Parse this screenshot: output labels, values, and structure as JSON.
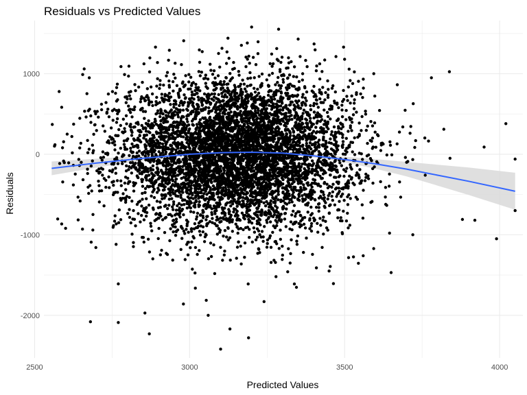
{
  "chart_data": {
    "type": "scatter",
    "title": "Residuals vs Predicted Values",
    "xlabel": "Predicted Values",
    "ylabel": "Residuals",
    "xlim": [
      2530,
      4075
    ],
    "ylim": [
      -2530,
      1660
    ],
    "x_major_ticks": [
      2500,
      3000,
      3500,
      4000
    ],
    "x_minor_ticks": [
      2750,
      3250,
      3750
    ],
    "y_major_ticks": [
      -2000,
      -1000,
      0,
      1000
    ],
    "y_minor_ticks": [
      -1500,
      -500,
      500,
      1500
    ],
    "x_tick_labels": [
      "2500",
      "3000",
      "3500",
      "4000"
    ],
    "y_tick_labels": [
      "-2000",
      "-1000",
      "0",
      "1000"
    ],
    "grid": true,
    "colors": {
      "points": "#000000",
      "smooth_line": "#3366FF",
      "confidence_band": "#d9d9d9",
      "grid": "#ebebeb"
    },
    "n_points_approx": 6000,
    "points_center_x": 3150,
    "points_spread_x_sd": 190,
    "points_spread_y_sd": 470,
    "highlighted_points": [
      [
        2557,
        370
      ],
      [
        2590,
        80
      ],
      [
        2600,
        -920
      ],
      [
        2605,
        250
      ],
      [
        2660,
        1060
      ],
      [
        2655,
        990
      ],
      [
        2680,
        -2080
      ],
      [
        2770,
        -2090
      ],
      [
        2770,
        -1610
      ],
      [
        2790,
        990
      ],
      [
        2870,
        -2230
      ],
      [
        2890,
        1330
      ],
      [
        2980,
        -1860
      ],
      [
        3060,
        -2000
      ],
      [
        3100,
        -2420
      ],
      [
        3130,
        -2170
      ],
      [
        3190,
        -2280
      ],
      [
        3200,
        1580
      ],
      [
        3240,
        -1830
      ],
      [
        3350,
        1430
      ],
      [
        3450,
        -1450
      ],
      [
        3500,
        1180
      ],
      [
        3560,
        -1260
      ],
      [
        3590,
        200
      ],
      [
        3650,
        -1470
      ],
      [
        3700,
        -100
      ],
      [
        3720,
        -1000
      ],
      [
        3760,
        -260
      ],
      [
        3780,
        950
      ],
      [
        3820,
        310
      ],
      [
        3840,
        -50
      ],
      [
        3880,
        -810
      ],
      [
        3920,
        -820
      ],
      [
        3950,
        90
      ],
      [
        3990,
        -1050
      ],
      [
        4020,
        380
      ],
      [
        4050,
        -60
      ],
      [
        4050,
        -700
      ]
    ],
    "smooth_curve": {
      "x": [
        2555,
        2700,
        2850,
        3000,
        3100,
        3200,
        3300,
        3400,
        3500,
        3600,
        3700,
        3800,
        3900,
        4050
      ],
      "y": [
        -175,
        -110,
        -50,
        0,
        20,
        25,
        15,
        -20,
        -65,
        -120,
        -185,
        -260,
        -335,
        -460
      ],
      "band_halfwidth": [
        85,
        55,
        30,
        15,
        10,
        10,
        12,
        20,
        35,
        60,
        90,
        130,
        170,
        230
      ]
    }
  }
}
